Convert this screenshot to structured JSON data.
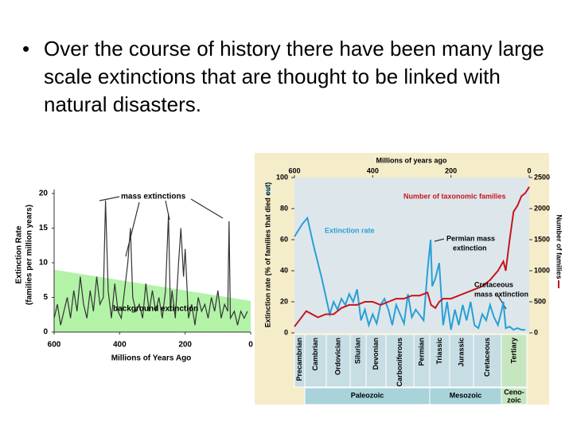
{
  "text": "Over the course of history there have been many large scale extinctions that are thought to be linked with natural disasters.",
  "chart_data": [
    {
      "type": "line",
      "xlabel": "Millions of Years Ago",
      "ylabel": [
        "Extinction Rate",
        "(families per million years)"
      ],
      "annotations": [
        "mass extinctions",
        "background extinction"
      ],
      "background_band": [
        9,
        4.5
      ],
      "color": "#333333",
      "band_color": "#b3f3a8",
      "xlim": [
        600,
        0
      ],
      "xticks": [
        600,
        400,
        200,
        0
      ],
      "ylim": [
        0,
        20
      ],
      "yticks": [
        0,
        5,
        10,
        15,
        20
      ],
      "x": [
        600,
        590,
        580,
        570,
        560,
        550,
        540,
        530,
        520,
        510,
        500,
        490,
        480,
        470,
        460,
        450,
        443,
        435,
        425,
        415,
        405,
        395,
        385,
        375,
        367,
        360,
        350,
        340,
        330,
        320,
        310,
        300,
        290,
        280,
        270,
        260,
        251,
        245,
        240,
        230,
        220,
        213,
        205,
        200,
        190,
        180,
        170,
        160,
        150,
        140,
        130,
        120,
        110,
        100,
        90,
        80,
        70,
        66,
        62,
        50,
        40,
        30,
        20,
        10
      ],
      "values": [
        2,
        4,
        1,
        3,
        5,
        2,
        6,
        3,
        8,
        4,
        2,
        6,
        3,
        8,
        4,
        5,
        19,
        6,
        2,
        7,
        3,
        2,
        6,
        10,
        15,
        5,
        3,
        4,
        2,
        7,
        3,
        6,
        3,
        5,
        2,
        6,
        17,
        3,
        6,
        2,
        10,
        15,
        8,
        12,
        2,
        4,
        1,
        5,
        3,
        4,
        2,
        5,
        3,
        6,
        2,
        4,
        3,
        16,
        2,
        3,
        1,
        3,
        2,
        3
      ]
    },
    {
      "type": "line",
      "title": "Millions of years ago",
      "ylabel": "Extinction rate (% of families that died out)",
      "y2label": "Number of families",
      "xlim": [
        600,
        0
      ],
      "xticks": [
        600,
        400,
        200,
        0
      ],
      "ylim": [
        0,
        100
      ],
      "yticks": [
        0,
        20,
        40,
        60,
        80,
        100
      ],
      "y2lim": [
        0,
        2500
      ],
      "y2ticks": [
        0,
        500,
        1000,
        1500,
        2000,
        2500
      ],
      "series": [
        {
          "name": "Extinction rate",
          "color": "#2a9fd6",
          "x": [
            600,
            580,
            567,
            550,
            530,
            510,
            500,
            490,
            480,
            470,
            460,
            450,
            440,
            430,
            420,
            410,
            400,
            390,
            380,
            370,
            360,
            350,
            340,
            330,
            320,
            310,
            300,
            290,
            270,
            260,
            252,
            248,
            240,
            230,
            220,
            210,
            200,
            190,
            180,
            170,
            160,
            150,
            140,
            130,
            120,
            110,
            100,
            90,
            80,
            70,
            66,
            60,
            50,
            40,
            30,
            20,
            10
          ],
          "values": [
            62,
            70,
            74,
            55,
            35,
            12,
            20,
            15,
            22,
            18,
            25,
            20,
            28,
            8,
            15,
            5,
            12,
            6,
            18,
            22,
            15,
            5,
            18,
            12,
            6,
            25,
            10,
            15,
            8,
            40,
            60,
            30,
            35,
            45,
            5,
            20,
            2,
            15,
            5,
            18,
            8,
            20,
            5,
            3,
            12,
            8,
            18,
            10,
            5,
            15,
            20,
            3,
            4,
            2,
            3,
            2,
            2
          ]
        },
        {
          "name": "Number of taxonomic families",
          "color": "#c8141e",
          "axis": "y2",
          "x": [
            600,
            570,
            540,
            520,
            500,
            480,
            460,
            440,
            420,
            400,
            380,
            360,
            340,
            320,
            300,
            280,
            260,
            251,
            240,
            230,
            220,
            200,
            180,
            160,
            140,
            120,
            100,
            80,
            66,
            60,
            50,
            40,
            30,
            20,
            10,
            0
          ],
          "values": [
            100,
            350,
            250,
            300,
            300,
            400,
            450,
            450,
            500,
            500,
            450,
            500,
            550,
            550,
            600,
            600,
            650,
            450,
            400,
            500,
            550,
            550,
            600,
            650,
            700,
            750,
            850,
            1000,
            1150,
            1000,
            1500,
            1950,
            2050,
            2200,
            2250,
            2350
          ]
        }
      ],
      "annotations": [
        [
          "Permian mass",
          "extinction"
        ],
        [
          "Cretaceous",
          "mass extinction"
        ]
      ],
      "periods": [
        "Precambrian",
        "Cambrian",
        "Ordovician",
        "Silurian",
        "Devonian",
        "Carboniferous",
        "Permian",
        "Triassic",
        "Jurassic",
        "Cretaceous",
        "Tertiary"
      ],
      "eras": [
        [
          "Paleozoic"
        ],
        [
          "Mesozoic"
        ],
        [
          "Ceno-",
          "zoic"
        ]
      ]
    }
  ]
}
